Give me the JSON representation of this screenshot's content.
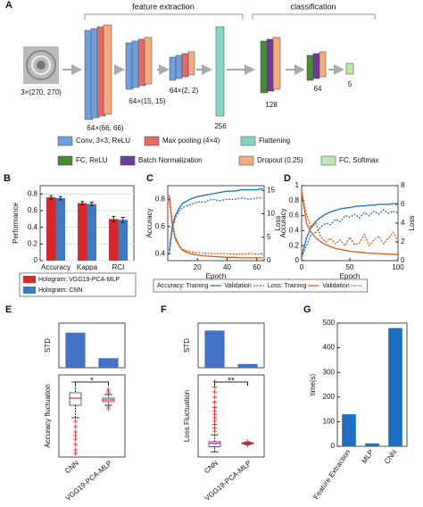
{
  "panel_labels": [
    "A",
    "B",
    "C",
    "D",
    "E",
    "F",
    "G"
  ],
  "diagram": {
    "groups": [
      "feature extraction",
      "classification"
    ],
    "layers": [
      {
        "label": "3×(270, 270)"
      },
      {
        "label": "64×(66, 66)"
      },
      {
        "label": "64×(15, 15)"
      },
      {
        "label": "64×(2, 2)"
      },
      {
        "label": "256"
      },
      {
        "label": "128"
      },
      {
        "label": "64"
      },
      {
        "label": "5"
      }
    ],
    "legend": [
      {
        "label": "Conv, 3×3, ReLU",
        "color": "#6f9fdc"
      },
      {
        "label": "Max pooling (4×4)",
        "color": "#e26a6a"
      },
      {
        "label": "Flattening",
        "color": "#86d6c6"
      },
      {
        "label": "FC, ReLU",
        "color": "#4b8a36"
      },
      {
        "label": "Batch Normalization",
        "color": "#6b3c9c"
      },
      {
        "label": "Dropout (0.25)",
        "color": "#f5ab7f"
      },
      {
        "label": "FC, Softmax",
        "color": "#bfe6ad"
      }
    ]
  },
  "chart_data": [
    {
      "type": "bar",
      "ylabel": "Performance",
      "categories": [
        "Accuracy",
        "Kappa",
        "RCI"
      ],
      "ylim": [
        0,
        0.9
      ],
      "yticks": [
        0,
        0.2,
        0.4,
        0.6,
        0.8
      ],
      "grid": true,
      "series": [
        {
          "name": "Hologram: VGG19-PCA-MLP",
          "color": "#d42a2a",
          "values": [
            0.76,
            0.69,
            0.5
          ],
          "errors": [
            0.02,
            0.02,
            0.03
          ]
        },
        {
          "name": "Hologram: CNN",
          "color": "#3f79c0",
          "values": [
            0.75,
            0.68,
            0.49
          ],
          "errors": [
            0.02,
            0.02,
            0.03
          ]
        }
      ]
    },
    {
      "type": "line",
      "xlabel": "Epoch",
      "ylabel": "Accuracy",
      "y2label": "Loss",
      "xlim": [
        0,
        65
      ],
      "xticks": [
        20,
        40,
        60
      ],
      "ylim": [
        0.35,
        0.9
      ],
      "yticks": [
        0.4,
        0.6,
        0.8
      ],
      "y2lim": [
        0,
        16
      ],
      "y2ticks": [
        0,
        5,
        10,
        15
      ],
      "x": [
        1,
        3,
        5,
        8,
        10,
        15,
        20,
        25,
        30,
        35,
        40,
        45,
        50,
        55,
        60,
        64
      ],
      "series": [
        {
          "name": "Accuracy: Training",
          "color": "#1f6fc0",
          "style": "solid",
          "values": [
            0.42,
            0.6,
            0.68,
            0.74,
            0.77,
            0.8,
            0.82,
            0.83,
            0.84,
            0.85,
            0.86,
            0.86,
            0.87,
            0.87,
            0.87,
            0.88
          ]
        },
        {
          "name": "Validation",
          "color": "#1f6fc0",
          "style": "dotted",
          "values": [
            0.4,
            0.58,
            0.66,
            0.72,
            0.74,
            0.76,
            0.78,
            0.78,
            0.8,
            0.79,
            0.8,
            0.8,
            0.81,
            0.8,
            0.81,
            0.81
          ]
        },
        {
          "name": "Loss: Training",
          "color": "#d9581c",
          "style": "solid",
          "axis": "y2",
          "values": [
            14,
            8,
            5,
            3,
            2.2,
            1.5,
            1.2,
            1,
            0.9,
            0.8,
            0.7,
            0.7,
            0.6,
            0.6,
            0.6,
            0.6
          ]
        },
        {
          "name": "Validation",
          "color": "#d9581c",
          "style": "dotted",
          "axis": "y2",
          "values": [
            13,
            7.5,
            4.5,
            3,
            2.4,
            1.9,
            1.7,
            1.6,
            1.5,
            1.5,
            1.5,
            1.4,
            1.4,
            1.5,
            1.4,
            1.5
          ]
        }
      ]
    },
    {
      "type": "line",
      "xlabel": "Epoch",
      "ylabel": "Accuracy",
      "y2label": "Loss",
      "xlim": [
        0,
        100
      ],
      "xticks": [
        0,
        50,
        100
      ],
      "ylim": [
        0,
        1
      ],
      "yticks": [
        0,
        0.2,
        0.4,
        0.6,
        0.8,
        1
      ],
      "y2lim": [
        0,
        8
      ],
      "y2ticks": [
        0,
        2,
        4,
        6,
        8
      ],
      "x": [
        0,
        5,
        10,
        15,
        20,
        25,
        30,
        35,
        40,
        45,
        50,
        55,
        60,
        65,
        70,
        75,
        80,
        85,
        90,
        95,
        100
      ],
      "series": [
        {
          "color": "#1f6fc0",
          "style": "solid",
          "values": [
            0.05,
            0.3,
            0.45,
            0.53,
            0.58,
            0.62,
            0.65,
            0.67,
            0.69,
            0.7,
            0.71,
            0.72,
            0.73,
            0.73,
            0.74,
            0.74,
            0.75,
            0.75,
            0.75,
            0.76,
            0.76
          ]
        },
        {
          "color": "#1f6fc0",
          "style": "dotted",
          "values": [
            0.05,
            0.2,
            0.35,
            0.38,
            0.45,
            0.5,
            0.48,
            0.55,
            0.52,
            0.6,
            0.58,
            0.62,
            0.57,
            0.64,
            0.6,
            0.66,
            0.62,
            0.68,
            0.63,
            0.66,
            0.64
          ]
        },
        {
          "color": "#d9581c",
          "style": "solid",
          "axis": "y2",
          "values": [
            7.5,
            4,
            3,
            2.4,
            2,
            1.7,
            1.5,
            1.3,
            1.2,
            1.1,
            1,
            0.95,
            0.9,
            0.85,
            0.8,
            0.78,
            0.75,
            0.72,
            0.7,
            0.68,
            0.66
          ]
        },
        {
          "color": "#d9581c",
          "style": "dotted",
          "axis": "y2",
          "values": [
            7,
            5,
            3.5,
            4,
            2.5,
            2,
            2.4,
            1.8,
            2.2,
            1.6,
            2.5,
            1.7,
            1.9,
            2.8,
            1.6,
            2.2,
            2.6,
            1.8,
            2.4,
            3,
            2.1
          ]
        }
      ]
    },
    {
      "type": "stdbar",
      "ylabel": "STD",
      "ylim": [
        0,
        0.07
      ],
      "color": "#4472c4",
      "values": [
        0.055,
        0.015
      ]
    },
    {
      "type": "box",
      "ylabel": "Accuracy fluctuation",
      "categories": [
        "CNN",
        "VGG19-PCA-MLP"
      ],
      "annotation": "*",
      "ylim": [
        -0.32,
        0.14
      ],
      "colors": [
        "#4a5fd0",
        "#7a4fb0"
      ],
      "boxes": [
        {
          "min": -0.1,
          "q1": -0.03,
          "median": 0.01,
          "q3": 0.04,
          "max": 0.1,
          "outliers": [
            -0.12,
            -0.15,
            -0.18,
            -0.2,
            -0.22,
            -0.25,
            -0.28,
            -0.3
          ]
        },
        {
          "min": -0.03,
          "q1": -0.01,
          "median": 0,
          "q3": 0.01,
          "max": 0.03,
          "outliers": [
            0.04,
            0.05,
            0.06,
            -0.04,
            -0.05
          ]
        }
      ]
    },
    {
      "type": "stdbar",
      "ylabel": "STD",
      "ylim": [
        0,
        0.6
      ],
      "color": "#4472c4",
      "values": [
        0.5,
        0.05
      ]
    },
    {
      "type": "box",
      "ylabel": "Loss Fluctuation",
      "categories": [
        "CNN",
        "VGG19-PCA-MLP"
      ],
      "annotation": "**",
      "ylim": [
        -0.8,
        4
      ],
      "colors": [
        "#4a5fd0",
        "#7a4fb0"
      ],
      "boxes": [
        {
          "min": -0.5,
          "q1": -0.2,
          "median": 0,
          "q3": 0.1,
          "max": 0.5,
          "outliers": [
            0.7,
            0.9,
            1.1,
            1.3,
            1.5,
            1.7,
            1.9,
            2.1,
            2.4,
            2.7,
            3,
            3.3,
            3.6
          ]
        },
        {
          "min": -0.06,
          "q1": -0.03,
          "median": 0,
          "q3": 0.03,
          "max": 0.06,
          "outliers": [
            0.1,
            -0.1
          ]
        }
      ]
    },
    {
      "type": "bar",
      "ylabel": "time(s)",
      "categories": [
        "Feature Extraction",
        "MLP",
        "CNN"
      ],
      "ylim": [
        0,
        500
      ],
      "yticks": [
        0,
        100,
        200,
        300,
        400,
        500
      ],
      "color": "#1f6fc0",
      "values": [
        130,
        12,
        480
      ]
    }
  ]
}
